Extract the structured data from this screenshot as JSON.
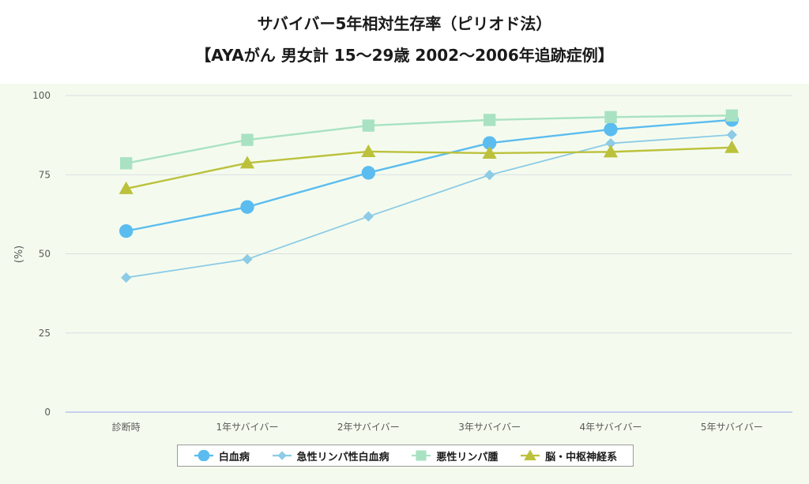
{
  "title": {
    "line1": "サバイバー5年相対生存率（ピリオド法）",
    "line2": "【AYAがん 男女計 15〜29歳 2002〜2006年追跡症例】"
  },
  "chart_data": {
    "type": "line",
    "categories": [
      "診断時",
      "1年サバイバー",
      "2年サバイバー",
      "3年サバイバー",
      "4年サバイバー",
      "5年サバイバー"
    ],
    "ylabel": "(%)",
    "ylim": [
      0,
      100
    ],
    "yticks": [
      0,
      25,
      50,
      75,
      100
    ],
    "grid": true,
    "legend_position": "bottom",
    "series": [
      {
        "name": "白血病",
        "color": "#5bbcef",
        "marker": "circle",
        "values": [
          57.2,
          64.8,
          75.6,
          85.0,
          89.3,
          92.3
        ]
      },
      {
        "name": "急性リンパ性白血病",
        "color": "#8dcbe6",
        "marker": "diamond",
        "values": [
          42.5,
          48.3,
          61.8,
          74.9,
          84.9,
          87.6
        ]
      },
      {
        "name": "悪性リンパ腫",
        "color": "#a9e2c2",
        "marker": "square",
        "values": [
          78.6,
          86.0,
          90.5,
          92.3,
          93.2,
          93.7
        ]
      },
      {
        "name": "脳・中枢神経系",
        "color": "#bcc13c",
        "marker": "triangle",
        "values": [
          70.6,
          78.7,
          82.3,
          81.8,
          82.2,
          83.6
        ]
      }
    ]
  }
}
